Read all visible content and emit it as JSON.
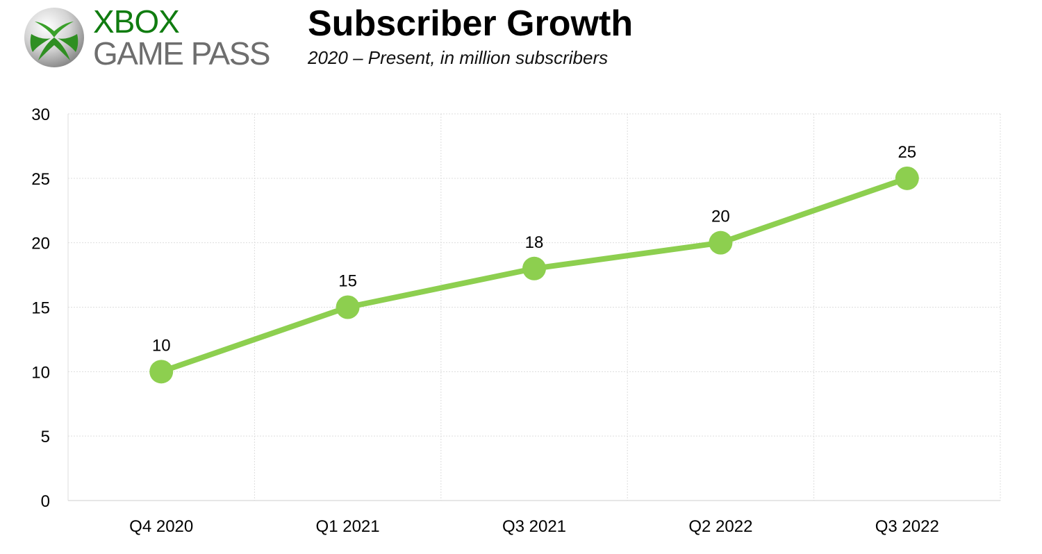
{
  "logo": {
    "line1": "XBOX",
    "line2": "GAME PASS",
    "line1_color": "#107C10",
    "line2_color": "#6E6E6E"
  },
  "chart_data": {
    "type": "line",
    "title": "Subscriber Growth",
    "subtitle": "2020 – Present, in million subscribers",
    "categories": [
      "Q4 2020",
      "Q1 2021",
      "Q3 2021",
      "Q2 2022",
      "Q3 2022"
    ],
    "series": [
      {
        "values": [
          10,
          15,
          18,
          20,
          25
        ],
        "color": "#8DCF4F"
      }
    ],
    "ylim": [
      0,
      30
    ],
    "yticks": [
      "0",
      "5",
      "10",
      "15",
      "20",
      "25",
      "30"
    ],
    "data_labels": [
      "10",
      "15",
      "18",
      "20",
      "25"
    ],
    "grid": true,
    "grid_color": "#DDDDDD"
  }
}
